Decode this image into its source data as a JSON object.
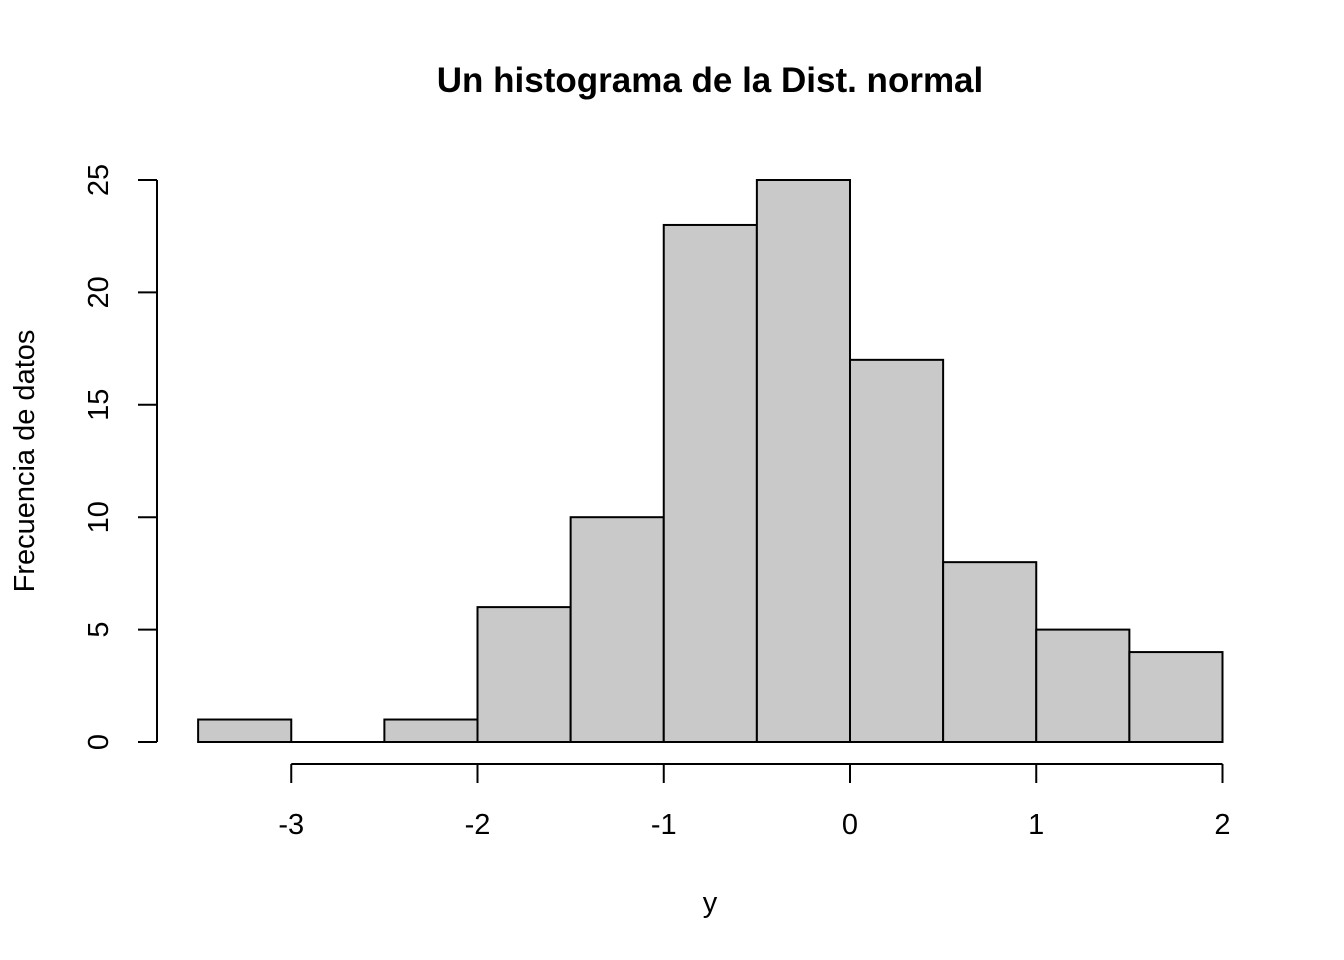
{
  "chart_data": {
    "type": "bar",
    "title": "Un histograma de la Dist. normal",
    "xlabel": "y",
    "ylabel": "Frecuencia de datos",
    "bins": [
      {
        "start": -3.5,
        "end": -3.0,
        "count": 1
      },
      {
        "start": -3.0,
        "end": -2.5,
        "count": 0
      },
      {
        "start": -2.5,
        "end": -2.0,
        "count": 1
      },
      {
        "start": -2.0,
        "end": -1.5,
        "count": 6
      },
      {
        "start": -1.5,
        "end": -1.0,
        "count": 10
      },
      {
        "start": -1.0,
        "end": -0.5,
        "count": 23
      },
      {
        "start": -0.5,
        "end": 0.0,
        "count": 25
      },
      {
        "start": 0.0,
        "end": 0.5,
        "count": 17
      },
      {
        "start": 0.5,
        "end": 1.0,
        "count": 8
      },
      {
        "start": 1.0,
        "end": 1.5,
        "count": 5
      },
      {
        "start": 1.5,
        "end": 2.0,
        "count": 4
      }
    ],
    "xlim": [
      -3.5,
      2.0
    ],
    "ylim": [
      0,
      25
    ],
    "x_ticks": [
      -3,
      -2,
      -1,
      0,
      1,
      2
    ],
    "x_tick_labels": [
      "-3",
      "-2",
      "-1",
      "0",
      "1",
      "2"
    ],
    "y_ticks": [
      0,
      5,
      10,
      15,
      20,
      25
    ],
    "y_tick_labels": [
      "0",
      "5",
      "10",
      "15",
      "20",
      "25"
    ],
    "bar_fill": "#c9c9c9",
    "bar_stroke": "#000000",
    "grid": false,
    "legend": "none"
  }
}
